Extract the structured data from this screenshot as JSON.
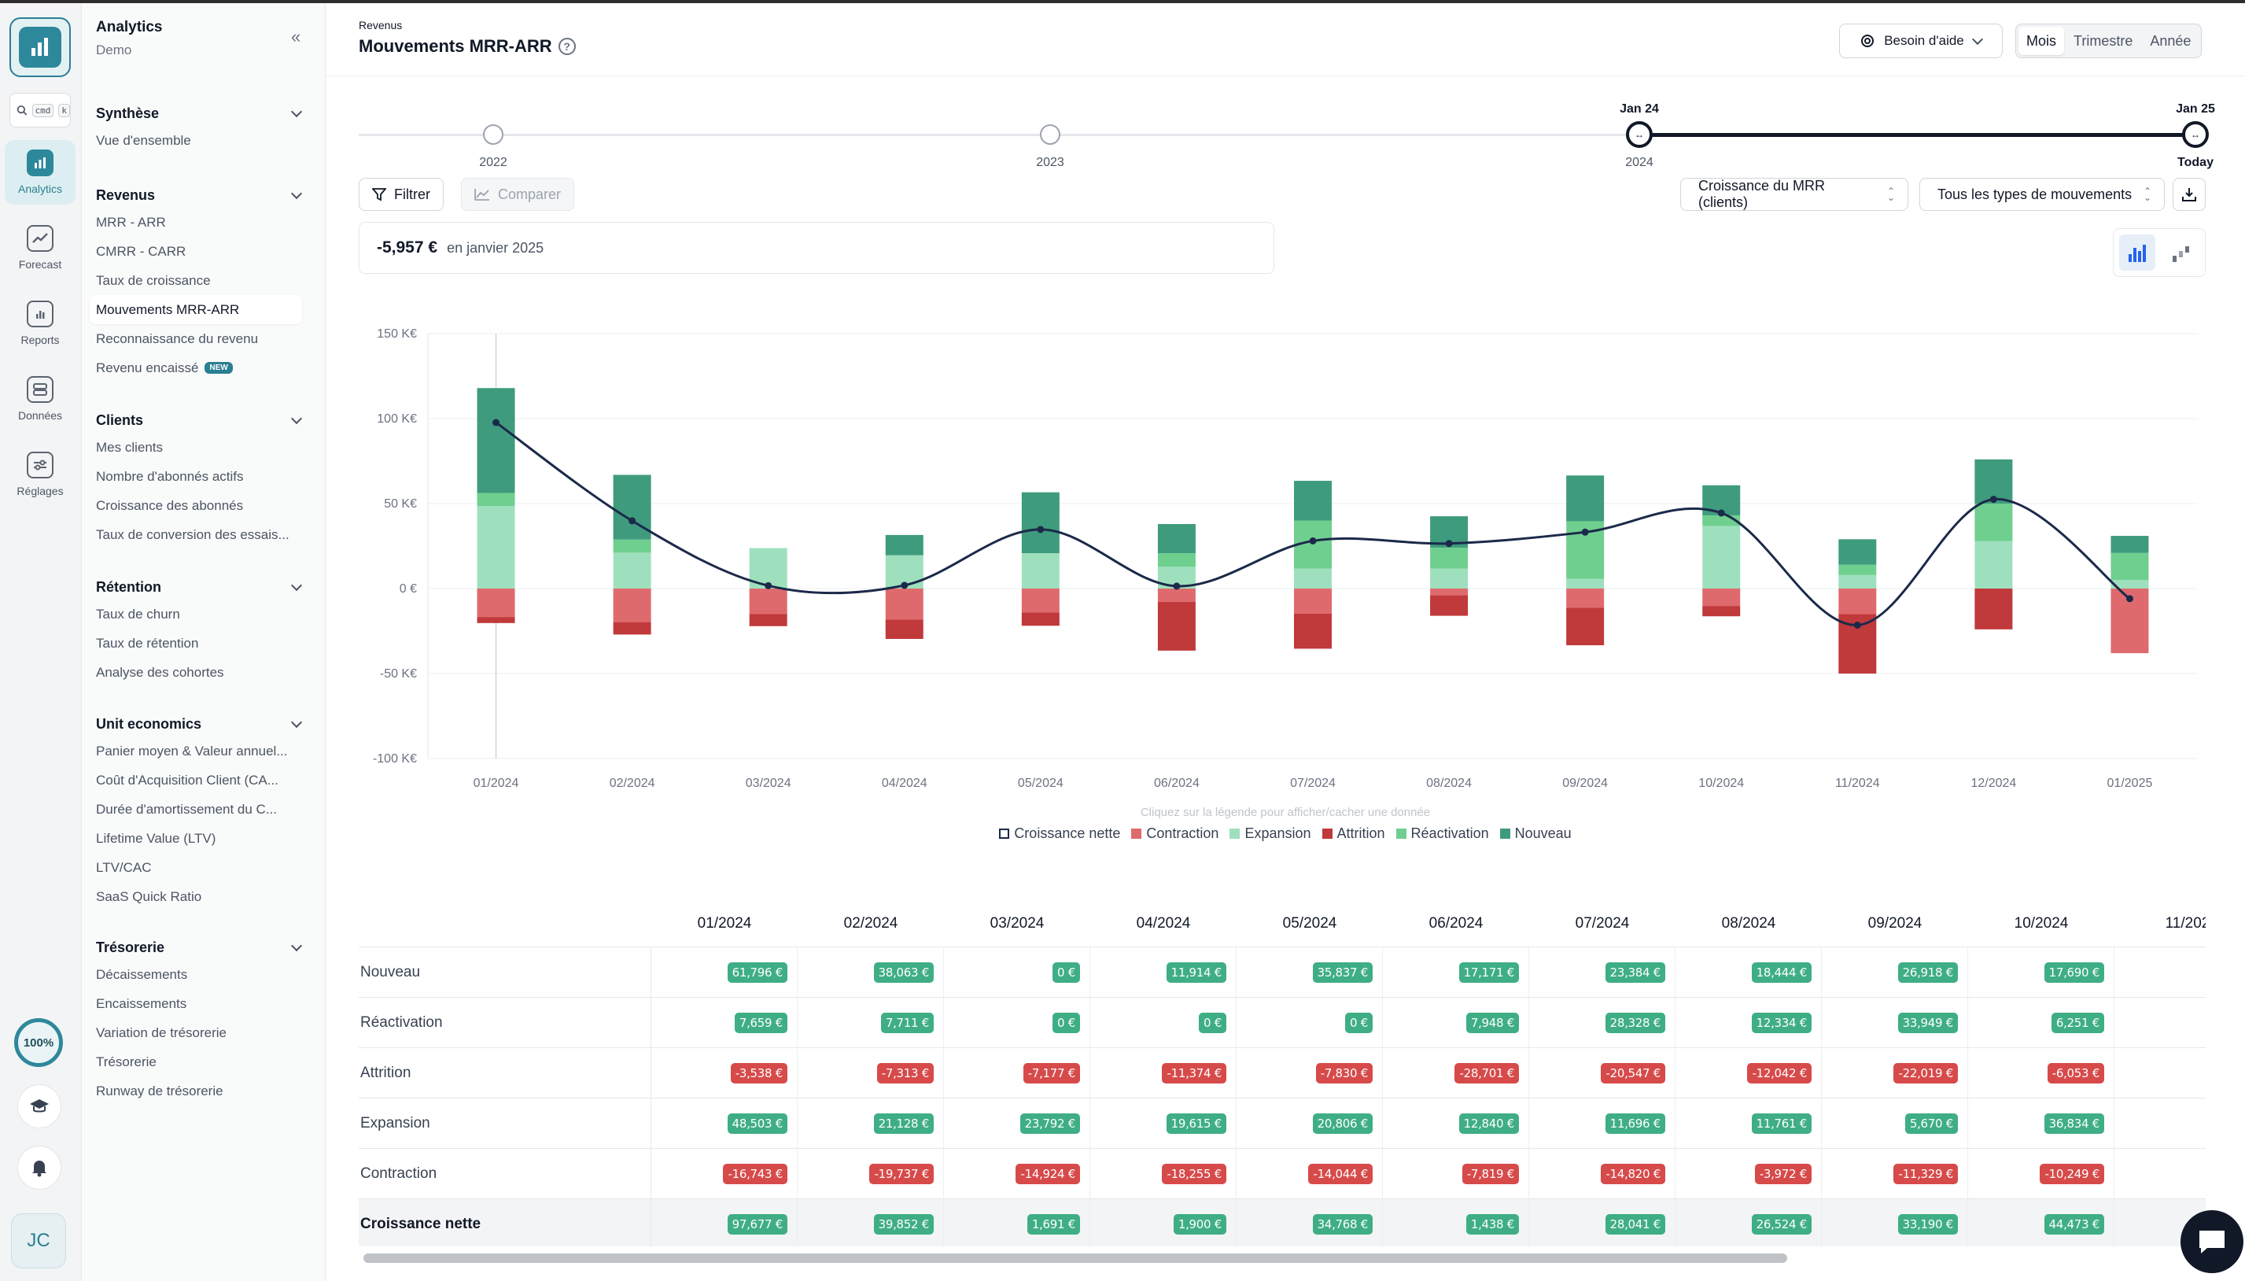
{
  "sidebar": {
    "app_title": "Analytics",
    "workspace": "Demo",
    "search_kbd": [
      "cmd",
      "k"
    ],
    "rail": [
      {
        "label": "Analytics",
        "icon": "analytics-icon",
        "active": true
      },
      {
        "label": "Forecast",
        "icon": "forecast-icon",
        "active": false
      },
      {
        "label": "Reports",
        "icon": "reports-icon",
        "active": false
      },
      {
        "label": "Données",
        "icon": "database-icon",
        "active": false
      },
      {
        "label": "Réglages",
        "icon": "settings-icon",
        "active": false
      }
    ],
    "progress": "100%",
    "avatar": "JC",
    "sections": [
      {
        "title": "Synthèse",
        "items": [
          "Vue d'ensemble"
        ]
      },
      {
        "title": "Revenus",
        "items": [
          "MRR - ARR",
          "CMRR - CARR",
          "Taux de croissance",
          "Mouvements MRR-ARR",
          "Reconnaissance du revenu",
          "Revenu encaissé"
        ]
      },
      {
        "title": "Clients",
        "items": [
          "Mes clients",
          "Nombre d'abonnés actifs",
          "Croissance des abonnés",
          "Taux de conversion des essais..."
        ]
      },
      {
        "title": "Rétention",
        "items": [
          "Taux de churn",
          "Taux de rétention",
          "Analyse des cohortes"
        ]
      },
      {
        "title": "Unit economics",
        "items": [
          "Panier moyen & Valeur annuel...",
          "Coût d'Acquisition Client (CA...",
          "Durée d'amortissement du C...",
          "Lifetime Value (LTV)",
          "LTV/CAC",
          "SaaS Quick Ratio"
        ]
      },
      {
        "title": "Trésorerie",
        "items": [
          "Décaissements",
          "Encaissements",
          "Variation de trésorerie",
          "Trésorerie",
          "Runway de trésorerie"
        ]
      }
    ],
    "new_badge": "NEW"
  },
  "header": {
    "breadcrumb": "Revenus",
    "title": "Mouvements MRR-ARR",
    "help_button": "Besoin d'aide",
    "periods": [
      "Mois",
      "Trimestre",
      "Année"
    ],
    "active_period": "Mois"
  },
  "timeline": {
    "years": [
      "2022",
      "2023",
      "2024",
      "Today"
    ],
    "range_start": "Jan 24",
    "range_end": "Jan 25"
  },
  "toolbar": {
    "filter": "Filtrer",
    "compare": "Comparer",
    "metric_select": "Croissance du MRR (clients)",
    "type_select": "Tous les types de mouvements"
  },
  "kpi": {
    "value": "-5,957 €",
    "context": "en janvier 2025"
  },
  "colors": {
    "nouveau": "#3f9b7d",
    "reactivation": "#6fcf8f",
    "expansion": "#9ee0bd",
    "attrition": "#c0393b",
    "contraction": "#df6a6e",
    "net": "#1b2a4a"
  },
  "chart_data": {
    "type": "bar",
    "stacked": true,
    "categories": [
      "01/2024",
      "02/2024",
      "03/2024",
      "04/2024",
      "05/2024",
      "06/2024",
      "07/2024",
      "08/2024",
      "09/2024",
      "10/2024",
      "11/2024",
      "12/2024",
      "01/2025"
    ],
    "ylim": [
      -100,
      150
    ],
    "y_ticks": [
      "150 K€",
      "100 K€",
      "50 K€",
      "0 €",
      "-50 K€",
      "-100 K€"
    ],
    "y_tick_values": [
      150,
      100,
      50,
      0,
      -50,
      -100
    ],
    "legend_hint": "Cliquez sur la légende pour afficher/cacher une donnée",
    "series": [
      {
        "name": "Croissance nette",
        "kind": "line",
        "values": [
          97.677,
          39.852,
          1.691,
          1.9,
          34.768,
          1.438,
          28.041,
          26.524,
          33.19,
          44.473,
          -21.5,
          52.5,
          -5.957
        ]
      },
      {
        "name": "Contraction",
        "kind": "neg",
        "values": [
          -16.743,
          -19.737,
          -14.924,
          -18.255,
          -14.044,
          -7.819,
          -14.82,
          -3.972,
          -11.329,
          -10.249,
          -15.0,
          0,
          -38.0
        ]
      },
      {
        "name": "Expansion",
        "kind": "pos",
        "values": [
          48.503,
          21.128,
          23.792,
          19.615,
          20.806,
          12.84,
          11.696,
          11.761,
          5.67,
          36.834,
          8.0,
          28.0,
          5.0
        ]
      },
      {
        "name": "Attrition",
        "kind": "neg",
        "values": [
          -3.538,
          -7.313,
          -7.177,
          -11.374,
          -7.83,
          -28.701,
          -20.547,
          -12.042,
          -22.019,
          -6.053,
          -35.0,
          -24.0,
          0
        ]
      },
      {
        "name": "Réactivation",
        "kind": "pos",
        "values": [
          7.659,
          7.711,
          0,
          0,
          0,
          7.948,
          28.328,
          12.334,
          33.949,
          6.251,
          6.0,
          22.0,
          16.0
        ]
      },
      {
        "name": "Nouveau",
        "kind": "pos",
        "values": [
          61.796,
          38.063,
          0,
          11.914,
          35.837,
          17.171,
          23.384,
          18.444,
          26.918,
          17.69,
          15.0,
          26.0,
          10.0
        ]
      }
    ]
  },
  "table": {
    "columns": [
      "01/2024",
      "02/2024",
      "03/2024",
      "04/2024",
      "05/2024",
      "06/2024",
      "07/2024",
      "08/2024",
      "09/2024",
      "10/2024",
      "11/202"
    ],
    "rows": [
      {
        "label": "Nouveau",
        "sign": "pos",
        "values": [
          "61,796 €",
          "38,063 €",
          "0 €",
          "11,914 €",
          "35,837 €",
          "17,171 €",
          "23,384 €",
          "18,444 €",
          "26,918 €",
          "17,690 €",
          ""
        ]
      },
      {
        "label": "Réactivation",
        "sign": "pos",
        "values": [
          "7,659 €",
          "7,711 €",
          "0 €",
          "0 €",
          "0 €",
          "7,948 €",
          "28,328 €",
          "12,334 €",
          "33,949 €",
          "6,251 €",
          ""
        ]
      },
      {
        "label": "Attrition",
        "sign": "neg",
        "values": [
          "-3,538 €",
          "-7,313 €",
          "-7,177 €",
          "-11,374 €",
          "-7,830 €",
          "-28,701 €",
          "-20,547 €",
          "-12,042 €",
          "-22,019 €",
          "-6,053 €",
          ""
        ]
      },
      {
        "label": "Expansion",
        "sign": "pos",
        "values": [
          "48,503 €",
          "21,128 €",
          "23,792 €",
          "19,615 €",
          "20,806 €",
          "12,840 €",
          "11,696 €",
          "11,761 €",
          "5,670 €",
          "36,834 €",
          ""
        ]
      },
      {
        "label": "Contraction",
        "sign": "neg",
        "values": [
          "-16,743 €",
          "-19,737 €",
          "-14,924 €",
          "-18,255 €",
          "-14,044 €",
          "-7,819 €",
          "-14,820 €",
          "-3,972 €",
          "-11,329 €",
          "-10,249 €",
          ""
        ]
      },
      {
        "label": "Croissance nette",
        "sign": "pos",
        "values": [
          "97,677 €",
          "39,852 €",
          "1,691 €",
          "1,900 €",
          "34,768 €",
          "1,438 €",
          "28,041 €",
          "26,524 €",
          "33,190 €",
          "44,473 €",
          ""
        ]
      }
    ]
  }
}
